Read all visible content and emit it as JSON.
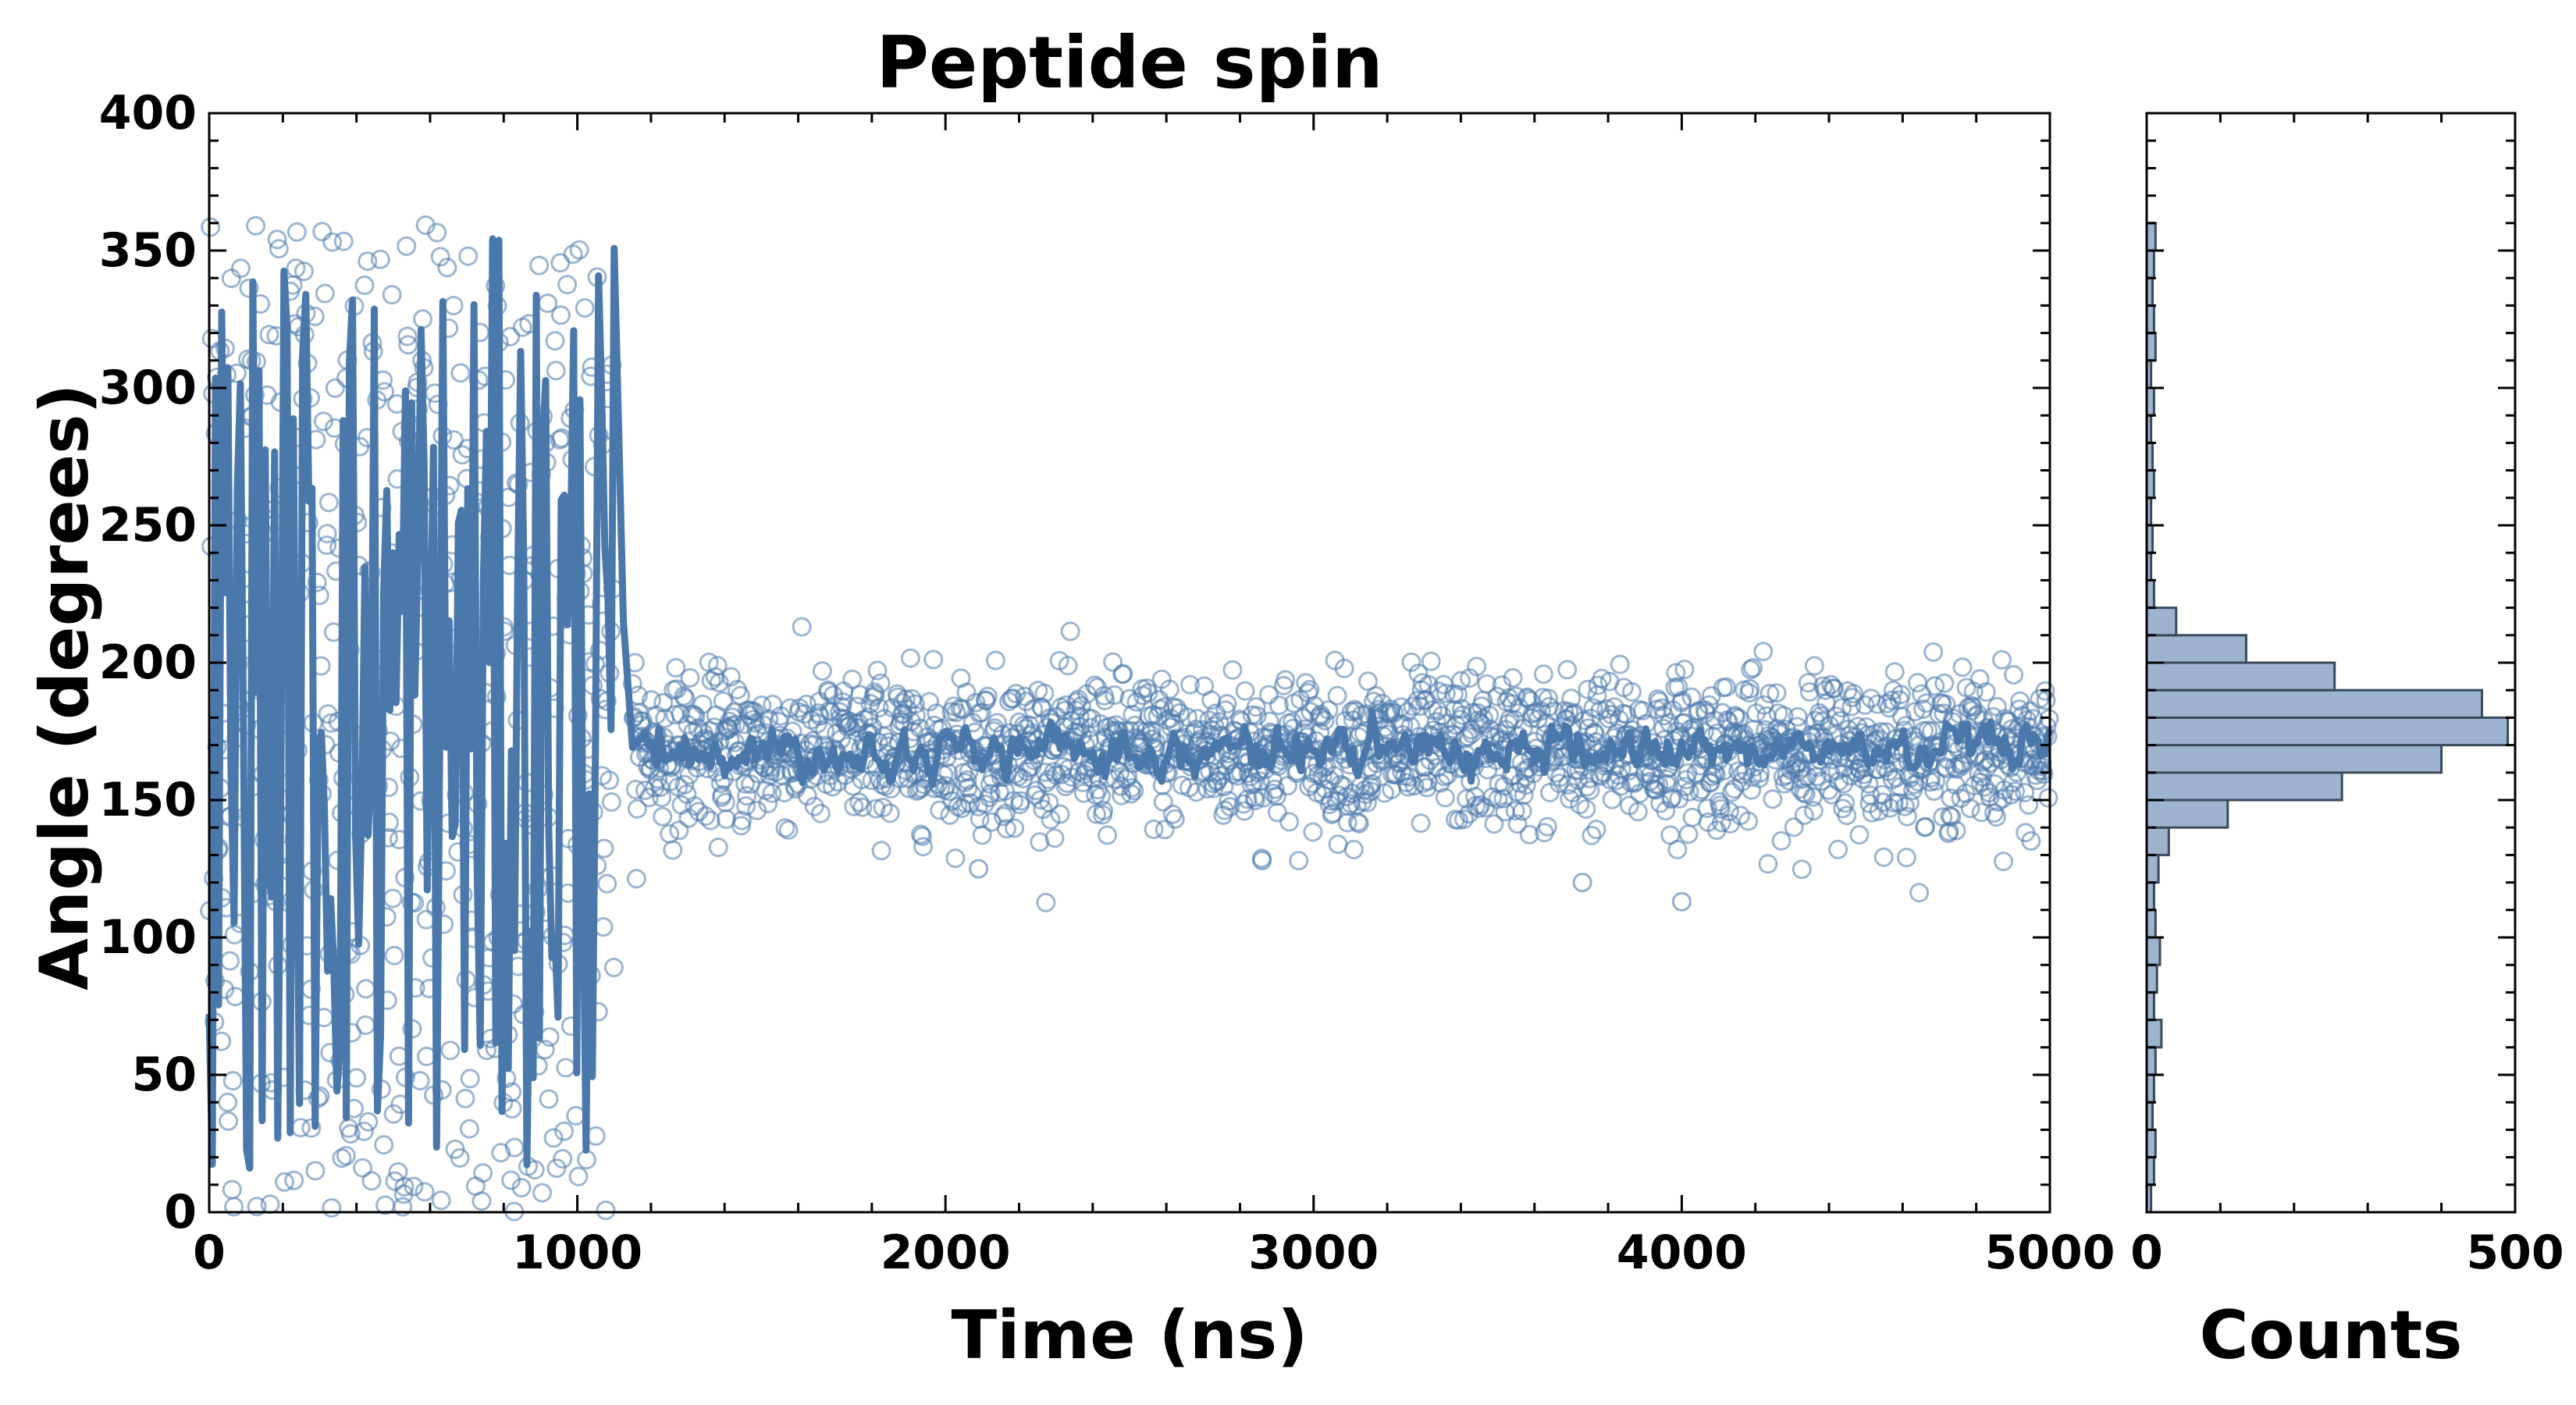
{
  "chart_data": {
    "type": "scatter",
    "title": "Peptide spin",
    "main": {
      "xlabel": "Time (ns)",
      "ylabel": "Angle (degrees)",
      "xlim": [
        0,
        5000
      ],
      "ylim": [
        0,
        400
      ],
      "xticks": [
        0,
        1000,
        2000,
        3000,
        4000,
        5000
      ],
      "yticks": [
        0,
        50,
        100,
        150,
        200,
        250,
        300,
        350,
        400
      ],
      "series": [
        {
          "name": "raw angle",
          "style": "open-circle",
          "color": "#4a78ab",
          "description": "dense samples; 0-1100 ns span 0-360 degrees, after 1150 ns clustered around 170 degrees",
          "segments": [
            {
              "x_start": 0,
              "x_end": 1100,
              "y_min": 0,
              "y_max": 360
            },
            {
              "x_start": 1150,
              "x_end": 5000,
              "y_mean": 168,
              "y_spread": 22
            }
          ]
        },
        {
          "name": "smoothed angle",
          "style": "line",
          "color": "#4a78ab",
          "segments": [
            {
              "x_start": 0,
              "x_end": 1100,
              "y_min": 15,
              "y_max": 355
            },
            {
              "x_start": 1150,
              "x_end": 5000,
              "y_mean": 168,
              "y_spread": 8
            }
          ]
        }
      ],
      "outliers": [
        {
          "x": 2090,
          "y": 125
        },
        {
          "x": 2860,
          "y": 128
        },
        {
          "x": 3730,
          "y": 120
        },
        {
          "x": 4000,
          "y": 113
        },
        {
          "x": 1080,
          "y": 186
        }
      ]
    },
    "histogram": {
      "xlabel": "Counts",
      "xlim": [
        0,
        500
      ],
      "xticks": [
        0,
        500
      ],
      "ylim": [
        0,
        400
      ],
      "orientation": "horizontal",
      "bin_width": 10,
      "bins": [
        {
          "y": 0,
          "count": 6
        },
        {
          "y": 10,
          "count": 10
        },
        {
          "y": 20,
          "count": 12
        },
        {
          "y": 30,
          "count": 8
        },
        {
          "y": 40,
          "count": 10
        },
        {
          "y": 50,
          "count": 12
        },
        {
          "y": 60,
          "count": 20
        },
        {
          "y": 70,
          "count": 10
        },
        {
          "y": 80,
          "count": 14
        },
        {
          "y": 90,
          "count": 18
        },
        {
          "y": 100,
          "count": 12
        },
        {
          "y": 110,
          "count": 10
        },
        {
          "y": 120,
          "count": 16
        },
        {
          "y": 130,
          "count": 30
        },
        {
          "y": 140,
          "count": 110
        },
        {
          "y": 150,
          "count": 265
        },
        {
          "y": 160,
          "count": 400
        },
        {
          "y": 170,
          "count": 490
        },
        {
          "y": 180,
          "count": 455
        },
        {
          "y": 190,
          "count": 255
        },
        {
          "y": 200,
          "count": 135
        },
        {
          "y": 210,
          "count": 40
        },
        {
          "y": 220,
          "count": 10
        },
        {
          "y": 230,
          "count": 6
        },
        {
          "y": 240,
          "count": 8
        },
        {
          "y": 250,
          "count": 6
        },
        {
          "y": 260,
          "count": 10
        },
        {
          "y": 270,
          "count": 8
        },
        {
          "y": 280,
          "count": 6
        },
        {
          "y": 290,
          "count": 10
        },
        {
          "y": 300,
          "count": 6
        },
        {
          "y": 310,
          "count": 12
        },
        {
          "y": 320,
          "count": 10
        },
        {
          "y": 330,
          "count": 8
        },
        {
          "y": 340,
          "count": 10
        },
        {
          "y": 350,
          "count": 12
        }
      ]
    },
    "colors": {
      "series": "#4a78ab",
      "hist_fill": "#9db4cf",
      "hist_edge": "#3a4a5a",
      "axes": "#000000"
    }
  }
}
